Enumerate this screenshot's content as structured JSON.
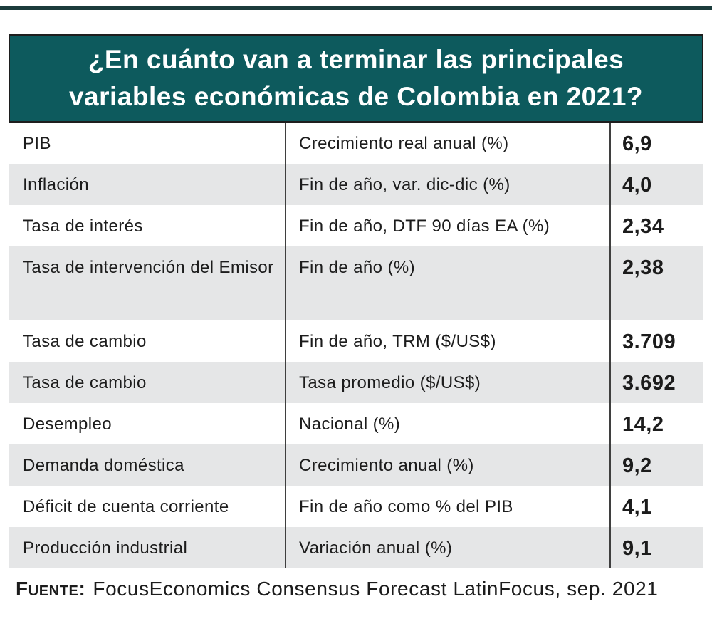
{
  "colors": {
    "teal": "#0d5a5d",
    "header_border": "#1e1e1e",
    "row_shade": "#e5e6e7",
    "divider": "#3f3f3f",
    "text": "#1c1c1c",
    "top_rule": "#1c3c3c"
  },
  "header": {
    "line1": "¿En cuánto van a terminar las principales",
    "line2": "variables económicas de Colombia en 2021?"
  },
  "table": {
    "rows": [
      {
        "variable": "PIB",
        "measure": "Crecimiento real anual (%)",
        "value": "6,9"
      },
      {
        "variable": "Inflación",
        "measure": "Fin de año, var. dic-dic (%)",
        "value": "4,0"
      },
      {
        "variable": "Tasa de interés",
        "measure": "Fin de año, DTF 90 días EA (%)",
        "value": "2,34"
      },
      {
        "variable": "Tasa de intervención del Emisor",
        "measure": "Fin de año (%)",
        "value": "2,38"
      },
      {
        "variable": "Tasa de cambio",
        "measure": "Fin de año, TRM ($/US$)",
        "value": "3.709"
      },
      {
        "variable": "Tasa de cambio",
        "measure": "Tasa promedio ($/US$)",
        "value": "3.692"
      },
      {
        "variable": "Desempleo",
        "measure": "Nacional (%)",
        "value": "14,2"
      },
      {
        "variable": "Demanda doméstica",
        "measure": "Crecimiento anual (%)",
        "value": "9,2"
      },
      {
        "variable": "Déficit de cuenta corriente",
        "measure": "Fin de año como % del PIB",
        "value": "4,1"
      },
      {
        "variable": "Producción industrial",
        "measure": "Variación anual (%)",
        "value": "9,1"
      }
    ]
  },
  "footer": {
    "source_label": "Fuente:",
    "source_text": "FocusEconomics Consensus Forecast LatinFocus, sep. 2021"
  },
  "chart_data": {
    "type": "table",
    "title": "¿En cuánto van a terminar las principales variables económicas de Colombia en 2021?",
    "rows": [
      [
        "PIB",
        "Crecimiento real anual (%)",
        6.9
      ],
      [
        "Inflación",
        "Fin de año, var. dic-dic (%)",
        4.0
      ],
      [
        "Tasa de interés",
        "Fin de año, DTF 90 días EA (%)",
        2.34
      ],
      [
        "Tasa de intervención del Emisor",
        "Fin de año (%)",
        2.38
      ],
      [
        "Tasa de cambio",
        "Fin de año, TRM ($/US$)",
        3709
      ],
      [
        "Tasa de cambio",
        "Tasa promedio ($/US$)",
        3692
      ],
      [
        "Desempleo",
        "Nacional (%)",
        14.2
      ],
      [
        "Demanda doméstica",
        "Crecimiento anual (%)",
        9.2
      ],
      [
        "Déficit de cuenta corriente",
        "Fin de año como % del PIB",
        4.1
      ],
      [
        "Producción industrial",
        "Variación anual (%)",
        9.1
      ]
    ],
    "source": "FocusEconomics Consensus Forecast LatinFocus, sep. 2021"
  }
}
